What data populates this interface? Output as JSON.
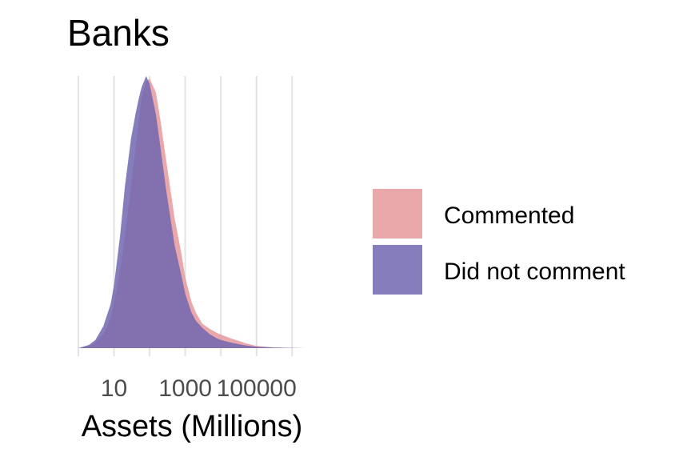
{
  "chart_data": {
    "type": "area",
    "subtype": "density",
    "title": "Banks",
    "xlabel": "Assets (Millions)",
    "ylabel": "",
    "x_scale": "log10",
    "xlim": [
      1,
      2500000
    ],
    "x_ticks": [
      {
        "value": 10,
        "label": "10"
      },
      {
        "value": 1000,
        "label": "1000"
      },
      {
        "value": 100000,
        "label": "100000"
      }
    ],
    "x_minor_ticks": [
      1,
      100,
      10000,
      1000000
    ],
    "ylim": [
      0,
      1
    ],
    "y_axis_visible": false,
    "grid": "vertical",
    "legend_position": "right",
    "series": [
      {
        "name": "Commented",
        "color": "#e6999b",
        "opacity": 0.85,
        "x": [
          1,
          2,
          3,
          5,
          8,
          10,
          15,
          20,
          30,
          40,
          50,
          60,
          80,
          100,
          150,
          200,
          300,
          500,
          800,
          1000,
          1500,
          2000,
          3000,
          5000,
          8000,
          10000,
          20000,
          30000,
          50000,
          100000,
          300000,
          1000000,
          2500000
        ],
        "y": [
          0.0,
          0.008,
          0.02,
          0.05,
          0.11,
          0.16,
          0.29,
          0.41,
          0.59,
          0.73,
          0.84,
          0.92,
          0.98,
          0.99,
          0.94,
          0.84,
          0.68,
          0.48,
          0.34,
          0.26,
          0.17,
          0.13,
          0.09,
          0.07,
          0.055,
          0.05,
          0.035,
          0.028,
          0.018,
          0.008,
          0.003,
          0.001,
          0.0
        ]
      },
      {
        "name": "Did not comment",
        "color": "#7066b0",
        "opacity": 0.85,
        "x": [
          1,
          2,
          3,
          5,
          8,
          10,
          15,
          20,
          30,
          40,
          50,
          60,
          80,
          100,
          150,
          200,
          300,
          500,
          800,
          1000,
          1500,
          2000,
          3000,
          5000,
          8000,
          10000,
          20000,
          30000,
          50000,
          100000,
          300000,
          1000000,
          2500000
        ],
        "y": [
          0.0,
          0.012,
          0.03,
          0.08,
          0.16,
          0.23,
          0.42,
          0.59,
          0.77,
          0.86,
          0.92,
          0.96,
          1.0,
          0.97,
          0.86,
          0.74,
          0.57,
          0.38,
          0.26,
          0.2,
          0.13,
          0.1,
          0.075,
          0.05,
          0.035,
          0.03,
          0.02,
          0.015,
          0.01,
          0.005,
          0.002,
          0.001,
          0.0
        ]
      }
    ]
  }
}
